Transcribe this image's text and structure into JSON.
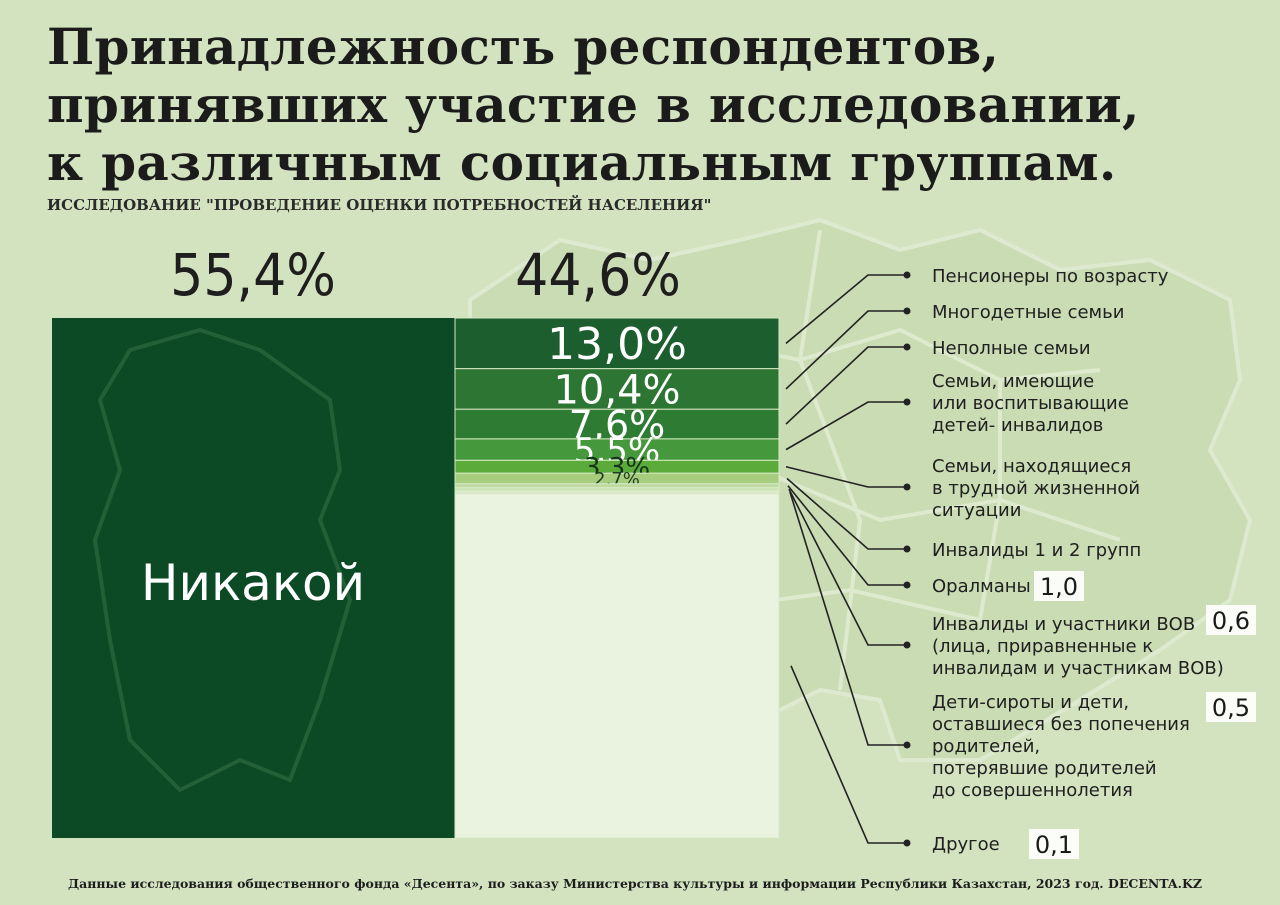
{
  "title": "Принадлежность респондентов,\nпринявших участие в исследовании,\nк различным социальным группам.",
  "subtitle": "ИССЛЕДОВАНИЕ \"ПРОВЕДЕНИЕ ОЦЕНКИ ПОТРЕБНОСТЕЙ НАСЕЛЕНИЯ\"",
  "footer": "Данные исследования общественного фонда «Десента», по заказу Министерства культуры и информации Республики Казахстан, 2023 год. DECENTA.KZ",
  "colors": {
    "background": "#d3e3c0",
    "none_block": "#0c4a26",
    "accent_dark": "#1c5e2e",
    "accent_light": "#a6cd7e"
  },
  "chart_data": {
    "type": "stacked-bar",
    "left": {
      "percent_label": "55,4%",
      "category": "Никакой",
      "value": 55.4
    },
    "right": {
      "percent_label": "44,6%",
      "value": 44.6
    },
    "segments": [
      {
        "label": "Пенсионеры по возрасту",
        "value": 13.0,
        "value_label": "13,0%",
        "color": "#1c5e2e"
      },
      {
        "label": "Многодетные семьи",
        "value": 10.4,
        "value_label": "10,4%",
        "color": "#2c7532"
      },
      {
        "label": "Неполные семьи",
        "value": 7.6,
        "value_label": "7,6%",
        "color": "#2e7b34"
      },
      {
        "label": "Семьи, имеющие\nили воспитывающие\nдетей- инвалидов",
        "value": 5.5,
        "value_label": "5,5%",
        "color": "#45993c"
      },
      {
        "label": "Семьи, находящиеся\nв трудной жизненной\nситуации",
        "value": 3.3,
        "value_label": "3,3%",
        "color": "#5aab3a"
      },
      {
        "label": "Инвалиды 1 и 2 групп",
        "value": 2.7,
        "value_label": "2,7%",
        "color": "#a6cd7e"
      },
      {
        "label": "Оралманы",
        "value": 1.0,
        "value_label": "1,0",
        "color": "#bddaa0"
      },
      {
        "label": "Инвалиды и участники ВОВ\n(лица, приравненные к\nинвалидам и участникам ВОВ)",
        "value": 0.6,
        "value_label": "0,6",
        "color": "#cde4b6"
      },
      {
        "label": "Дети-сироты и дети,\nоставшиеся без попечения\nродителей,\nпотерявшие родителей\nдо совершеннолетия",
        "value": 0.5,
        "value_label": "0,5",
        "color": "#dcecca"
      },
      {
        "label": "Другое",
        "value": 0.1,
        "value_label": "0,1",
        "color": "#e9f3df"
      }
    ]
  }
}
